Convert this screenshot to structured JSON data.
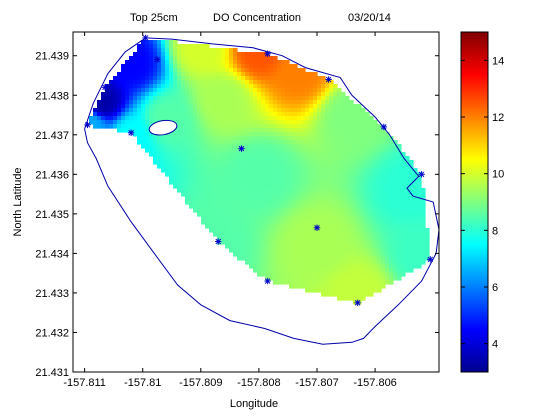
{
  "chart_data": {
    "type": "heatmap",
    "title_parts": [
      "Top 25cm",
      "DO Concentration",
      "03/20/14"
    ],
    "xlabel": "Longitude",
    "ylabel": "North Latitude",
    "xlim": [
      -157.8112,
      -157.8049
    ],
    "ylim": [
      21.431,
      21.4396
    ],
    "x_ticks": [
      -157.811,
      -157.81,
      -157.809,
      -157.808,
      -157.807,
      -157.806
    ],
    "x_tick_labels": [
      "-157.811",
      "-157.81",
      "-157.809",
      "-157.808",
      "-157.807",
      "-157.806"
    ],
    "y_ticks": [
      21.431,
      21.432,
      21.433,
      21.434,
      21.435,
      21.436,
      21.437,
      21.438,
      21.439
    ],
    "y_tick_labels": [
      "21.431",
      "21.432",
      "21.433",
      "21.434",
      "21.435",
      "21.436",
      "21.437",
      "21.438",
      "21.439"
    ],
    "colorbar": {
      "range": [
        3,
        15
      ],
      "ticks": [
        4,
        6,
        8,
        10,
        12,
        14
      ],
      "tick_labels": [
        "4",
        "6",
        "8",
        "10",
        "12",
        "14"
      ]
    },
    "sample_points": [
      {
        "x": -157.81095,
        "y": 21.43725
      },
      {
        "x": -157.81065,
        "y": 21.4382
      },
      {
        "x": -157.8102,
        "y": 21.43705
      },
      {
        "x": -157.80995,
        "y": 21.43945
      },
      {
        "x": -157.80975,
        "y": 21.4389
      },
      {
        "x": -157.8083,
        "y": 21.43665
      },
      {
        "x": -157.80785,
        "y": 21.43905
      },
      {
        "x": -157.8087,
        "y": 21.4343
      },
      {
        "x": -157.80785,
        "y": 21.4333
      },
      {
        "x": -157.807,
        "y": 21.43465
      },
      {
        "x": -157.8068,
        "y": 21.4384
      },
      {
        "x": -157.8063,
        "y": 21.43275
      },
      {
        "x": -157.80585,
        "y": 21.4372
      },
      {
        "x": -157.8052,
        "y": 21.436
      },
      {
        "x": -157.80505,
        "y": 21.43385
      }
    ],
    "interpolation_region": [
      [
        -157.81095,
        21.43725
      ],
      [
        -157.81065,
        21.4382
      ],
      [
        -157.80995,
        21.43945
      ],
      [
        -157.80785,
        21.43905
      ],
      [
        -157.8068,
        21.4384
      ],
      [
        -157.80585,
        21.4372
      ],
      [
        -157.8052,
        21.436
      ],
      [
        -157.80505,
        21.43385
      ],
      [
        -157.8063,
        21.43275
      ],
      [
        -157.80785,
        21.4333
      ],
      [
        -157.8087,
        21.4343
      ],
      [
        -157.8102,
        21.43705
      ]
    ],
    "value_field": [
      {
        "x": -157.8107,
        "y": 21.4378,
        "v": 3.5
      },
      {
        "x": -157.8102,
        "y": 21.4388,
        "v": 4.5
      },
      {
        "x": -157.8096,
        "y": 21.4374,
        "v": 8.5
      },
      {
        "x": -157.808,
        "y": 21.4391,
        "v": 12.5
      },
      {
        "x": -157.8073,
        "y": 21.4386,
        "v": 12.0
      },
      {
        "x": -157.809,
        "y": 21.4392,
        "v": 10.0
      },
      {
        "x": -157.8086,
        "y": 21.4379,
        "v": 9.5
      },
      {
        "x": -157.8064,
        "y": 21.4375,
        "v": 9.0
      },
      {
        "x": -157.808,
        "y": 21.436,
        "v": 8.5
      },
      {
        "x": -157.807,
        "y": 21.4342,
        "v": 9.5
      },
      {
        "x": -157.8063,
        "y": 21.433,
        "v": 9.8
      },
      {
        "x": -157.8088,
        "y": 21.4342,
        "v": 8.5
      },
      {
        "x": -157.8054,
        "y": 21.4356,
        "v": 8.0
      },
      {
        "x": -157.8052,
        "y": 21.434,
        "v": 8.2
      },
      {
        "x": -157.8102,
        "y": 21.437,
        "v": 7.5
      },
      {
        "x": -157.8109,
        "y": 21.43725,
        "v": 6.5
      }
    ],
    "colors": {
      "marker": "#0000cc",
      "coastline": "#0000aa",
      "island_fill": "#ffffff"
    }
  }
}
